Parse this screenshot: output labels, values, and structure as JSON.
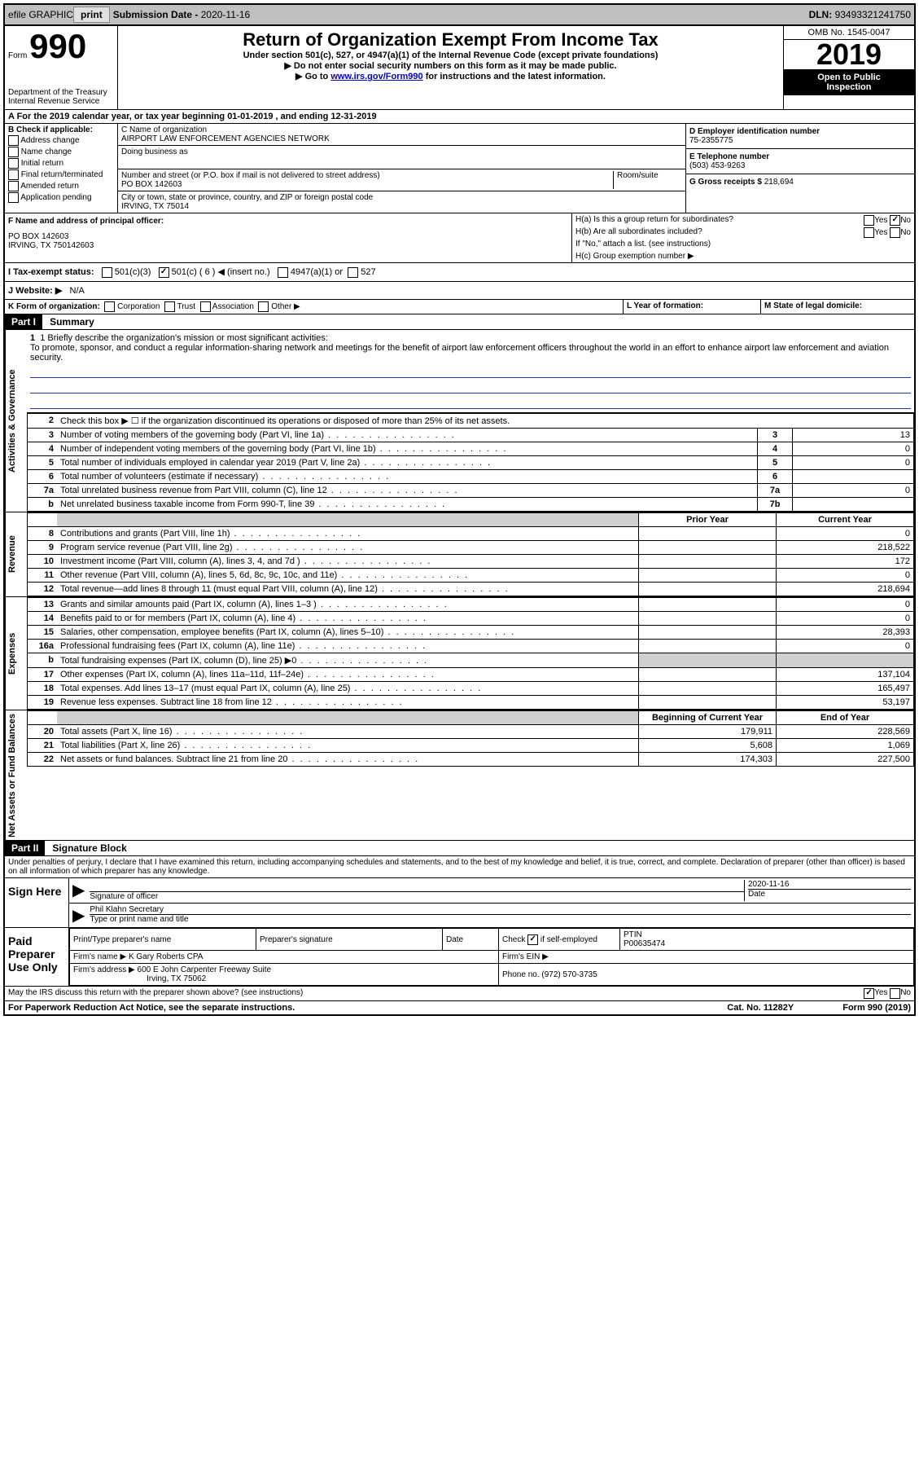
{
  "top_bar": {
    "efile_label": "efile GRAPHIC",
    "print_btn": "print",
    "submission_label": "Submission Date - ",
    "submission_date": "2020-11-16",
    "dln_label": "DLN: ",
    "dln": "93493321241750"
  },
  "header": {
    "form_prefix": "Form",
    "form_number": "990",
    "title": "Return of Organization Exempt From Income Tax",
    "subtitle1": "Under section 501(c), 527, or 4947(a)(1) of the Internal Revenue Code (except private foundations)",
    "subtitle2": "Do not enter social security numbers on this form as it may be made public.",
    "subtitle3_pre": "Go to ",
    "subtitle3_link": "www.irs.gov/Form990",
    "subtitle3_post": " for instructions and the latest information.",
    "omb": "OMB No. 1545-0047",
    "year": "2019",
    "public1": "Open to Public",
    "public2": "Inspection",
    "dept1": "Department of the Treasury",
    "dept2": "Internal Revenue Service"
  },
  "period": {
    "line": "A For the 2019 calendar year, or tax year beginning 01-01-2019    , and ending 12-31-2019"
  },
  "box_b": {
    "header": "B Check if applicable:",
    "opts": [
      "Address change",
      "Name change",
      "Initial return",
      "Final return/terminated",
      "Amended return",
      "Application pending"
    ]
  },
  "box_c": {
    "name_label": "C Name of organization",
    "name": "AIRPORT LAW ENFORCEMENT AGENCIES NETWORK",
    "dba_label": "Doing business as",
    "dba": "",
    "addr_label": "Number and street (or P.O. box if mail is not delivered to street address)",
    "room_label": "Room/suite",
    "addr": "PO BOX 142603",
    "city_label": "City or town, state or province, country, and ZIP or foreign postal code",
    "city": "IRVING, TX   75014"
  },
  "box_d": {
    "label": "D Employer identification number",
    "ein": "75-2355775"
  },
  "box_e": {
    "label": "E Telephone number",
    "phone": "(503) 453-9263"
  },
  "box_g": {
    "label": "G Gross receipts $ ",
    "amount": "218,694"
  },
  "box_f": {
    "label": "F  Name and address of principal officer:",
    "addr1": "PO BOX 142603",
    "addr2": "IRVING, TX   750142603"
  },
  "box_h": {
    "ha_label": "H(a)  Is this a group return for subordinates?",
    "hb_label": "H(b)  Are all subordinates included?",
    "hb_note": "If \"No,\" attach a list. (see instructions)",
    "hc_label": "H(c)  Group exemption number ▶",
    "yes": "Yes",
    "no": "No"
  },
  "box_i": {
    "label": "I  Tax-exempt status:",
    "opt1": "501(c)(3)",
    "opt2_pre": "501(c) ( ",
    "opt2_num": "6",
    "opt2_post": " ) ◀ (insert no.)",
    "opt3": "4947(a)(1) or",
    "opt4": "527"
  },
  "box_j": {
    "label": "J  Website: ▶",
    "value": "N/A"
  },
  "box_k": {
    "label": "K Form of organization:",
    "opts": [
      "Corporation",
      "Trust",
      "Association",
      "Other ▶"
    ]
  },
  "box_l": {
    "label": "L Year of formation:",
    "value": ""
  },
  "box_m": {
    "label": "M State of legal domicile:",
    "value": ""
  },
  "part1": {
    "header": "Part I",
    "title": "Summary",
    "mission_label": "1  Briefly describe the organization's mission or most significant activities:",
    "mission": "To promote, sponsor, and conduct a regular information-sharing network and meetings for the benefit of airport law enforcement officers throughout the world in an effort to enhance airport law enforcement and aviation security."
  },
  "sidebar": {
    "ag": "Activities & Governance",
    "rev": "Revenue",
    "exp": "Expenses",
    "nafb": "Net Assets or Fund Balances"
  },
  "ag_rows": [
    {
      "n": "2",
      "desc": "Check this box ▶ ☐  if the organization discontinued its operations or disposed of more than 25% of its net assets.",
      "box": "",
      "val": ""
    },
    {
      "n": "3",
      "desc": "Number of voting members of the governing body (Part VI, line 1a)",
      "box": "3",
      "val": "13"
    },
    {
      "n": "4",
      "desc": "Number of independent voting members of the governing body (Part VI, line 1b)",
      "box": "4",
      "val": "0"
    },
    {
      "n": "5",
      "desc": "Total number of individuals employed in calendar year 2019 (Part V, line 2a)",
      "box": "5",
      "val": "0"
    },
    {
      "n": "6",
      "desc": "Total number of volunteers (estimate if necessary)",
      "box": "6",
      "val": ""
    },
    {
      "n": "7a",
      "desc": "Total unrelated business revenue from Part VIII, column (C), line 12",
      "box": "7a",
      "val": "0"
    },
    {
      "n": "b",
      "desc": "Net unrelated business taxable income from Form 990-T, line 39",
      "box": "7b",
      "val": ""
    }
  ],
  "rev_header": {
    "prior": "Prior Year",
    "current": "Current Year"
  },
  "rev_rows": [
    {
      "n": "8",
      "desc": "Contributions and grants (Part VIII, line 1h)",
      "prior": "",
      "current": "0"
    },
    {
      "n": "9",
      "desc": "Program service revenue (Part VIII, line 2g)",
      "prior": "",
      "current": "218,522"
    },
    {
      "n": "10",
      "desc": "Investment income (Part VIII, column (A), lines 3, 4, and 7d )",
      "prior": "",
      "current": "172"
    },
    {
      "n": "11",
      "desc": "Other revenue (Part VIII, column (A), lines 5, 6d, 8c, 9c, 10c, and 11e)",
      "prior": "",
      "current": "0"
    },
    {
      "n": "12",
      "desc": "Total revenue—add lines 8 through 11 (must equal Part VIII, column (A), line 12)",
      "prior": "",
      "current": "218,694"
    }
  ],
  "exp_rows": [
    {
      "n": "13",
      "desc": "Grants and similar amounts paid (Part IX, column (A), lines 1–3 )",
      "prior": "",
      "current": "0"
    },
    {
      "n": "14",
      "desc": "Benefits paid to or for members (Part IX, column (A), line 4)",
      "prior": "",
      "current": "0"
    },
    {
      "n": "15",
      "desc": "Salaries, other compensation, employee benefits (Part IX, column (A), lines 5–10)",
      "prior": "",
      "current": "28,393"
    },
    {
      "n": "16a",
      "desc": "Professional fundraising fees (Part IX, column (A), line 11e)",
      "prior": "",
      "current": "0"
    },
    {
      "n": "b",
      "desc": "Total fundraising expenses (Part IX, column (D), line 25) ▶0",
      "prior": "shaded",
      "current": "shaded"
    },
    {
      "n": "17",
      "desc": "Other expenses (Part IX, column (A), lines 11a–11d, 11f–24e)",
      "prior": "",
      "current": "137,104"
    },
    {
      "n": "18",
      "desc": "Total expenses. Add lines 13–17 (must equal Part IX, column (A), line 25)",
      "prior": "",
      "current": "165,497"
    },
    {
      "n": "19",
      "desc": "Revenue less expenses. Subtract line 18 from line 12",
      "prior": "",
      "current": "53,197"
    }
  ],
  "nafb_header": {
    "begin": "Beginning of Current Year",
    "end": "End of Year"
  },
  "nafb_rows": [
    {
      "n": "20",
      "desc": "Total assets (Part X, line 16)",
      "begin": "179,911",
      "end": "228,569"
    },
    {
      "n": "21",
      "desc": "Total liabilities (Part X, line 26)",
      "begin": "5,608",
      "end": "1,069"
    },
    {
      "n": "22",
      "desc": "Net assets or fund balances. Subtract line 21 from line 20",
      "begin": "174,303",
      "end": "227,500"
    }
  ],
  "part2": {
    "header": "Part II",
    "title": "Signature Block",
    "perjury": "Under penalties of perjury, I declare that I have examined this return, including accompanying schedules and statements, and to the best of my knowledge and belief, it is true, correct, and complete. Declaration of preparer (other than officer) is based on all information of which preparer has any knowledge."
  },
  "sign": {
    "here": "Sign Here",
    "sig_label": "Signature of officer",
    "date_label": "Date",
    "date": "2020-11-16",
    "name": "Phil Klahn Secretary",
    "name_label": "Type or print name and title"
  },
  "prep": {
    "label": "Paid Preparer Use Only",
    "print_label": "Print/Type preparer's name",
    "sig_label": "Preparer's signature",
    "date_label": "Date",
    "check_label": "Check",
    "self_emp": "if self-employed",
    "ptin_label": "PTIN",
    "ptin": "P00635474",
    "firm_name_label": "Firm's name    ▶",
    "firm_name": "K Gary Roberts CPA",
    "firm_ein_label": "Firm's EIN ▶",
    "firm_addr_label": "Firm's address ▶",
    "firm_addr1": "600 E John Carpenter Freeway Suite",
    "firm_addr2": "Irving, TX   75062",
    "phone_label": "Phone no.",
    "phone": "(972) 570-3735"
  },
  "footer": {
    "discuss": "May the IRS discuss this return with the preparer shown above? (see instructions)",
    "yes": "Yes",
    "no": "No",
    "paperwork": "For Paperwork Reduction Act Notice, see the separate instructions.",
    "cat": "Cat. No. 11282Y",
    "form": "Form 990 (2019)"
  },
  "colors": {
    "link": "#0000cc",
    "line_blue": "#2233cc",
    "shade": "#d0d0d0",
    "topbar": "#c0c0c0"
  }
}
